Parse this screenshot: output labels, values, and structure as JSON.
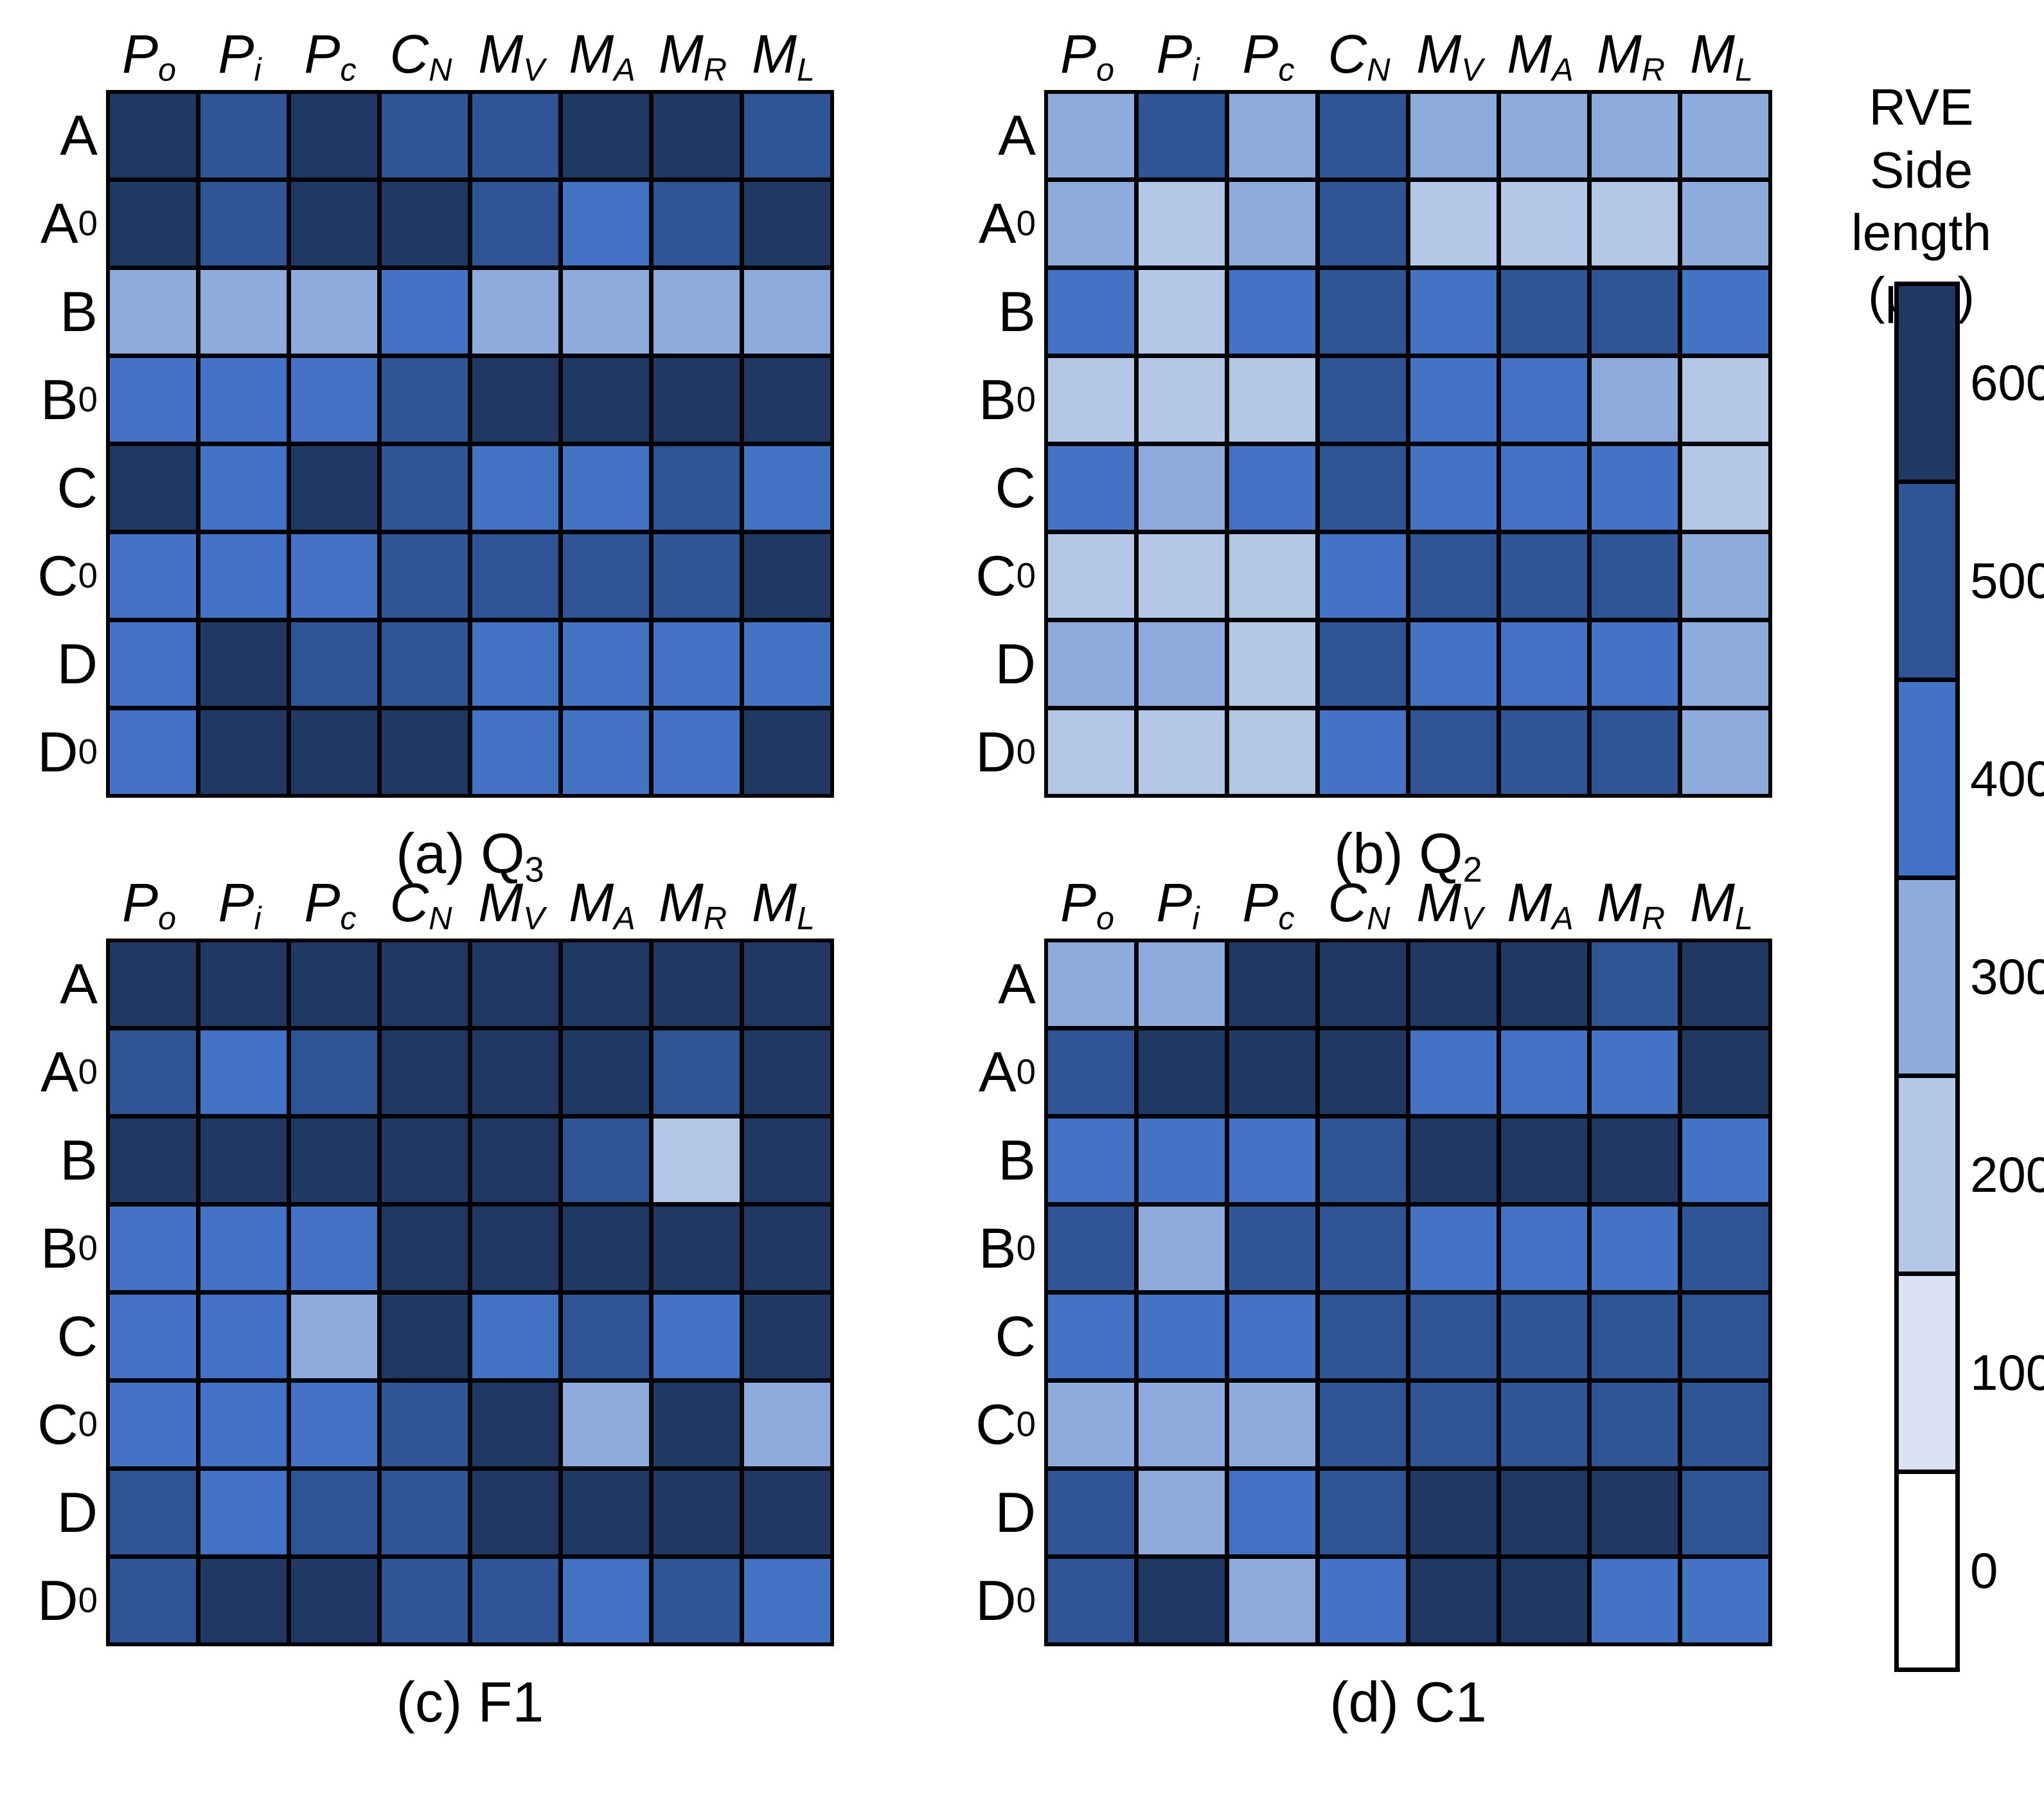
{
  "legend": {
    "title_lines": [
      "RVE",
      "Side length",
      "(μm)"
    ],
    "scale": [
      {
        "value": 600,
        "color": "#1F3864"
      },
      {
        "value": 500,
        "color": "#2F5597"
      },
      {
        "value": 400,
        "color": "#4472C4"
      },
      {
        "value": 300,
        "color": "#8FAADC"
      },
      {
        "value": 200,
        "color": "#B4C7E7"
      },
      {
        "value": 100,
        "color": "#DAE3F3"
      },
      {
        "value": 0,
        "color": "#FFFFFF"
      }
    ]
  },
  "chart_data": [
    {
      "type": "heatmap",
      "caption": {
        "prefix": "(a) ",
        "base": "Q",
        "sub": "3"
      },
      "x_labels": [
        {
          "base": "P",
          "sub": "o"
        },
        {
          "base": "P",
          "sub": "i"
        },
        {
          "base": "P",
          "sub": "c"
        },
        {
          "base": "C",
          "sub": "N"
        },
        {
          "base": "M",
          "sub": "V"
        },
        {
          "base": "M",
          "sub": "A"
        },
        {
          "base": "M",
          "sub": "R"
        },
        {
          "base": "M",
          "sub": "L"
        }
      ],
      "y_labels": [
        {
          "base": "A",
          "sub": ""
        },
        {
          "base": "A",
          "sub": "0"
        },
        {
          "base": "B",
          "sub": ""
        },
        {
          "base": "B",
          "sub": "0"
        },
        {
          "base": "C",
          "sub": ""
        },
        {
          "base": "C",
          "sub": "0"
        },
        {
          "base": "D",
          "sub": ""
        },
        {
          "base": "D",
          "sub": "0"
        }
      ],
      "unit": "μm",
      "values": [
        [
          600,
          500,
          600,
          500,
          500,
          600,
          600,
          500
        ],
        [
          600,
          500,
          600,
          600,
          500,
          400,
          500,
          600
        ],
        [
          300,
          300,
          300,
          400,
          300,
          300,
          300,
          300
        ],
        [
          400,
          400,
          400,
          500,
          600,
          600,
          600,
          600
        ],
        [
          600,
          400,
          600,
          500,
          400,
          400,
          500,
          400
        ],
        [
          400,
          400,
          400,
          500,
          500,
          500,
          500,
          600
        ],
        [
          400,
          600,
          500,
          500,
          400,
          400,
          400,
          400
        ],
        [
          400,
          600,
          600,
          600,
          400,
          400,
          400,
          600
        ]
      ]
    },
    {
      "type": "heatmap",
      "caption": {
        "prefix": "(b) ",
        "base": "Q",
        "sub": "2"
      },
      "x_labels": [
        {
          "base": "P",
          "sub": "o"
        },
        {
          "base": "P",
          "sub": "i"
        },
        {
          "base": "P",
          "sub": "c"
        },
        {
          "base": "C",
          "sub": "N"
        },
        {
          "base": "M",
          "sub": "V"
        },
        {
          "base": "M",
          "sub": "A"
        },
        {
          "base": "M",
          "sub": "R"
        },
        {
          "base": "M",
          "sub": "L"
        }
      ],
      "y_labels": [
        {
          "base": "A",
          "sub": ""
        },
        {
          "base": "A",
          "sub": "0"
        },
        {
          "base": "B",
          "sub": ""
        },
        {
          "base": "B",
          "sub": "0"
        },
        {
          "base": "C",
          "sub": ""
        },
        {
          "base": "C",
          "sub": "0"
        },
        {
          "base": "D",
          "sub": ""
        },
        {
          "base": "D",
          "sub": "0"
        }
      ],
      "unit": "μm",
      "values": [
        [
          300,
          500,
          300,
          500,
          300,
          300,
          300,
          300
        ],
        [
          300,
          200,
          300,
          500,
          200,
          200,
          200,
          300
        ],
        [
          400,
          200,
          400,
          500,
          400,
          500,
          500,
          400
        ],
        [
          200,
          200,
          200,
          500,
          400,
          400,
          300,
          200
        ],
        [
          400,
          300,
          400,
          500,
          400,
          400,
          400,
          200
        ],
        [
          200,
          200,
          200,
          400,
          500,
          500,
          500,
          300
        ],
        [
          300,
          300,
          200,
          500,
          400,
          400,
          400,
          300
        ],
        [
          200,
          200,
          200,
          400,
          500,
          500,
          500,
          300
        ]
      ]
    },
    {
      "type": "heatmap",
      "caption": {
        "prefix": "(c) ",
        "base": "F1",
        "sub": ""
      },
      "x_labels": [
        {
          "base": "P",
          "sub": "o"
        },
        {
          "base": "P",
          "sub": "i"
        },
        {
          "base": "P",
          "sub": "c"
        },
        {
          "base": "C",
          "sub": "N"
        },
        {
          "base": "M",
          "sub": "V"
        },
        {
          "base": "M",
          "sub": "A"
        },
        {
          "base": "M",
          "sub": "R"
        },
        {
          "base": "M",
          "sub": "L"
        }
      ],
      "y_labels": [
        {
          "base": "A",
          "sub": ""
        },
        {
          "base": "A",
          "sub": "0"
        },
        {
          "base": "B",
          "sub": ""
        },
        {
          "base": "B",
          "sub": "0"
        },
        {
          "base": "C",
          "sub": ""
        },
        {
          "base": "C",
          "sub": "0"
        },
        {
          "base": "D",
          "sub": ""
        },
        {
          "base": "D",
          "sub": "0"
        }
      ],
      "unit": "μm",
      "values": [
        [
          600,
          600,
          600,
          600,
          600,
          600,
          600,
          600
        ],
        [
          500,
          400,
          500,
          600,
          600,
          600,
          500,
          600
        ],
        [
          600,
          600,
          600,
          600,
          600,
          500,
          200,
          600
        ],
        [
          400,
          400,
          400,
          600,
          600,
          600,
          600,
          600
        ],
        [
          400,
          400,
          300,
          600,
          400,
          500,
          400,
          600
        ],
        [
          400,
          400,
          400,
          500,
          600,
          300,
          600,
          300
        ],
        [
          500,
          400,
          500,
          500,
          600,
          600,
          600,
          600
        ],
        [
          500,
          600,
          600,
          500,
          500,
          400,
          500,
          400
        ]
      ]
    },
    {
      "type": "heatmap",
      "caption": {
        "prefix": "(d) ",
        "base": "C1",
        "sub": ""
      },
      "x_labels": [
        {
          "base": "P",
          "sub": "o"
        },
        {
          "base": "P",
          "sub": "i"
        },
        {
          "base": "P",
          "sub": "c"
        },
        {
          "base": "C",
          "sub": "N"
        },
        {
          "base": "M",
          "sub": "V"
        },
        {
          "base": "M",
          "sub": "A"
        },
        {
          "base": "M",
          "sub": "R"
        },
        {
          "base": "M",
          "sub": "L"
        }
      ],
      "y_labels": [
        {
          "base": "A",
          "sub": ""
        },
        {
          "base": "A",
          "sub": "0"
        },
        {
          "base": "B",
          "sub": ""
        },
        {
          "base": "B",
          "sub": "0"
        },
        {
          "base": "C",
          "sub": ""
        },
        {
          "base": "C",
          "sub": "0"
        },
        {
          "base": "D",
          "sub": ""
        },
        {
          "base": "D",
          "sub": "0"
        }
      ],
      "unit": "μm",
      "values": [
        [
          300,
          300,
          600,
          600,
          600,
          600,
          500,
          600
        ],
        [
          500,
          600,
          600,
          600,
          400,
          400,
          400,
          600
        ],
        [
          400,
          400,
          400,
          500,
          600,
          600,
          600,
          400
        ],
        [
          500,
          300,
          500,
          500,
          400,
          400,
          400,
          500
        ],
        [
          400,
          400,
          400,
          500,
          500,
          500,
          500,
          500
        ],
        [
          300,
          300,
          300,
          500,
          500,
          500,
          500,
          500
        ],
        [
          500,
          300,
          400,
          500,
          600,
          600,
          600,
          500
        ],
        [
          500,
          600,
          300,
          400,
          600,
          600,
          400,
          400
        ]
      ]
    }
  ]
}
